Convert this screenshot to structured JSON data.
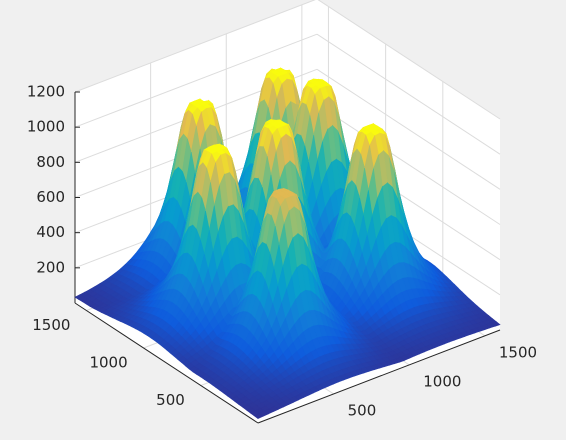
{
  "chart_data": {
    "type": "surface",
    "xlim": [
      0,
      1600
    ],
    "ylim": [
      0,
      1600
    ],
    "zlim": [
      0,
      1200
    ],
    "xticks": [
      500,
      1000,
      1500
    ],
    "yticks": [
      500,
      1000,
      1500
    ],
    "zticks": [
      200,
      400,
      600,
      800,
      1000,
      1200
    ],
    "grid": true,
    "colormap": "parula",
    "peaks": [
      {
        "x": 1200,
        "y": 1400,
        "z": 1000
      },
      {
        "x": 1290,
        "y": 1180,
        "z": 1000
      },
      {
        "x": 670,
        "y": 1390,
        "z": 1000
      },
      {
        "x": 860,
        "y": 975,
        "z": 1000
      },
      {
        "x": 450,
        "y": 960,
        "z": 1000
      },
      {
        "x": 1225,
        "y": 625,
        "z": 1000
      },
      {
        "x": 560,
        "y": 515,
        "z": 900
      }
    ]
  }
}
